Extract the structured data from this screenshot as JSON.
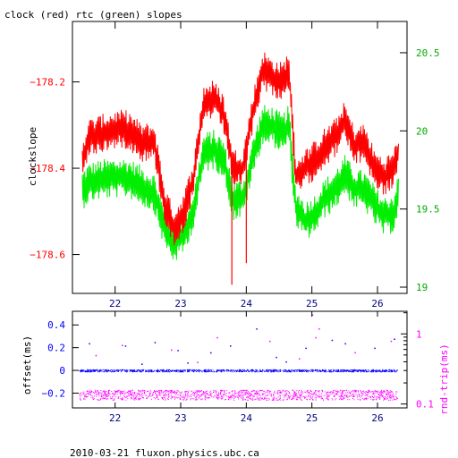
{
  "page": {
    "title": "clock (red) rtc (green) slopes",
    "footer": "2010-03-21 fluxon.physics.ubc.ca"
  },
  "colors": {
    "clock": "#ff0000",
    "rtc": "#00ee00",
    "offset": "#0000ff",
    "rndtrip": "#ff00ff",
    "axis": "#000000"
  },
  "chart_data": [
    {
      "type": "line",
      "title": "clock (red) rtc (green) slopes",
      "xlabel": "",
      "ylabel": "clockslope",
      "y2label": "",
      "xlim": [
        21.35,
        26.45
      ],
      "ylim": [
        -178.69,
        -178.06
      ],
      "y2lim": [
        18.96,
        20.7
      ],
      "x_ticks": [
        "22",
        "23",
        "24",
        "25",
        "26"
      ],
      "y_ticks": [
        "-178.2",
        "-178.4",
        "-178.6"
      ],
      "y2_ticks": [
        "20.5",
        "20",
        "19.5",
        "19"
      ],
      "grid": false,
      "series": [
        {
          "name": "clock",
          "axis": "left",
          "color": "#ff0000",
          "x": [
            21.5,
            21.6,
            21.8,
            22.0,
            22.2,
            22.4,
            22.6,
            22.75,
            22.9,
            23.05,
            23.2,
            23.35,
            23.5,
            23.65,
            23.8,
            23.95,
            24.1,
            24.25,
            24.4,
            24.55,
            24.65,
            24.75,
            24.9,
            25.05,
            25.2,
            25.35,
            25.5,
            25.65,
            25.8,
            25.95,
            26.1,
            26.25,
            26.32
          ],
          "y": [
            -178.38,
            -178.33,
            -178.32,
            -178.31,
            -178.31,
            -178.34,
            -178.34,
            -178.48,
            -178.54,
            -178.5,
            -178.42,
            -178.25,
            -178.24,
            -178.27,
            -178.4,
            -178.4,
            -178.27,
            -178.17,
            -178.19,
            -178.2,
            -178.17,
            -178.42,
            -178.4,
            -178.38,
            -178.35,
            -178.33,
            -178.29,
            -178.35,
            -178.34,
            -178.4,
            -178.42,
            -178.4,
            -178.36
          ]
        },
        {
          "name": "rtc",
          "axis": "right",
          "color": "#00ee00",
          "x": [
            21.5,
            21.6,
            21.8,
            22.0,
            22.2,
            22.4,
            22.6,
            22.75,
            22.9,
            23.05,
            23.2,
            23.35,
            23.5,
            23.65,
            23.8,
            23.95,
            24.1,
            24.25,
            24.4,
            24.55,
            24.65,
            24.75,
            24.9,
            25.05,
            25.2,
            25.35,
            25.5,
            25.65,
            25.8,
            25.95,
            26.1,
            26.25,
            26.32
          ],
          "y": [
            19.62,
            19.67,
            19.69,
            19.7,
            19.7,
            19.65,
            19.6,
            19.38,
            19.28,
            19.34,
            19.5,
            19.86,
            19.88,
            19.83,
            19.55,
            19.57,
            19.83,
            20.04,
            20.03,
            19.98,
            20.04,
            19.52,
            19.42,
            19.47,
            19.57,
            19.62,
            19.72,
            19.63,
            19.62,
            19.53,
            19.45,
            19.48,
            19.6
          ]
        }
      ],
      "spikes": [
        {
          "x": 23.78,
          "y": -178.67
        },
        {
          "x": 24.0,
          "y": -178.62
        }
      ]
    },
    {
      "type": "scatter",
      "xlabel": "",
      "ylabel": "offset(ms)",
      "y2label": "rnd-trip(ms)",
      "xlim": [
        21.35,
        26.45
      ],
      "ylim": [
        -0.33,
        0.52
      ],
      "y2_log": true,
      "y2lim": [
        0.088,
        2.1
      ],
      "x_ticks": [
        "22",
        "23",
        "24",
        "25",
        "26"
      ],
      "y_ticks": [
        "0.4",
        "0.2",
        "0",
        "-0.2"
      ],
      "y2_ticks": [
        "1",
        "0.1"
      ],
      "grid": false,
      "series": [
        {
          "name": "offset",
          "axis": "left",
          "color": "#0000ff",
          "x_range": [
            21.45,
            26.3
          ],
          "level": 0.0,
          "spread": 0.01
        },
        {
          "name": "rnd-trip",
          "axis": "right",
          "color": "#ff00ff",
          "x_range": [
            21.45,
            26.3
          ],
          "level": 0.135,
          "spread_low": 0.115,
          "spread_high": 0.16
        }
      ],
      "outliers_offset": [
        {
          "x": 21.6,
          "y": 0.24
        },
        {
          "x": 22.15,
          "y": 0.22
        },
        {
          "x": 22.6,
          "y": 0.25
        },
        {
          "x": 22.95,
          "y": 0.18
        },
        {
          "x": 23.45,
          "y": 0.16
        },
        {
          "x": 23.75,
          "y": 0.22
        },
        {
          "x": 24.15,
          "y": 0.37
        },
        {
          "x": 24.45,
          "y": 0.12
        },
        {
          "x": 24.9,
          "y": 0.2
        },
        {
          "x": 25.3,
          "y": 0.27
        },
        {
          "x": 25.5,
          "y": 0.24
        },
        {
          "x": 25.95,
          "y": 0.2
        },
        {
          "x": 26.25,
          "y": 0.28
        },
        {
          "x": 22.4,
          "y": 0.06
        },
        {
          "x": 23.1,
          "y": 0.07
        },
        {
          "x": 24.6,
          "y": 0.08
        }
      ],
      "outliers_rndtrip": [
        {
          "x": 25.0,
          "y": 1.9
        },
        {
          "x": 25.1,
          "y": 1.2
        },
        {
          "x": 25.05,
          "y": 0.9
        },
        {
          "x": 24.35,
          "y": 0.8
        },
        {
          "x": 23.55,
          "y": 0.9
        },
        {
          "x": 22.1,
          "y": 0.7
        },
        {
          "x": 22.85,
          "y": 0.6
        },
        {
          "x": 26.2,
          "y": 0.8
        },
        {
          "x": 25.65,
          "y": 0.55
        },
        {
          "x": 21.7,
          "y": 0.5
        },
        {
          "x": 24.8,
          "y": 0.45
        },
        {
          "x": 23.25,
          "y": 0.4
        }
      ]
    }
  ]
}
